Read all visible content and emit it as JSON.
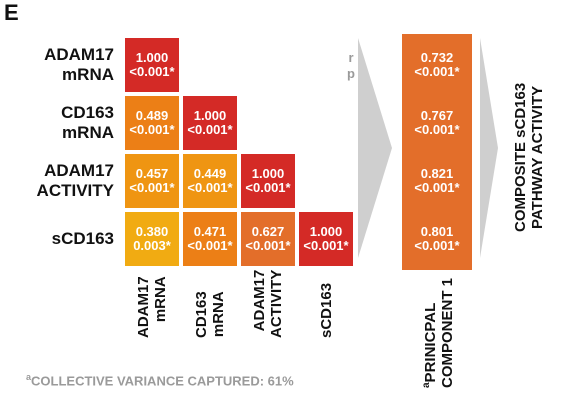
{
  "panel_letter": "E",
  "legend_key": {
    "r": "r",
    "p": "p"
  },
  "footnote": {
    "marker": "a",
    "text": "COLLECTIVE VARIANCE CAPTURED: 61%"
  },
  "colors": {
    "c1000": "#d42a26",
    "c05": "#e36e2a",
    "c06": "#ec7f16",
    "c04": "#ef9512",
    "c03": "#f1ab12",
    "arrow": "#cfcfcf"
  },
  "chart_data": {
    "type": "heatmap",
    "variables": [
      {
        "line1": "ADAM17",
        "line2": "mRNA"
      },
      {
        "line1": "CD163",
        "line2": "mRNA"
      },
      {
        "line1": "ADAM17",
        "line2": "ACTIVITY"
      },
      {
        "line1": "sCD163",
        "line2": ""
      }
    ],
    "correlation_matrix": [
      [
        {
          "r": "1.000",
          "p": "<0.001*"
        }
      ],
      [
        {
          "r": "0.489",
          "p": "<0.001*"
        },
        {
          "r": "1.000",
          "p": "<0.001*"
        }
      ],
      [
        {
          "r": "0.457",
          "p": "<0.001*"
        },
        {
          "r": "0.449",
          "p": "<0.001*"
        },
        {
          "r": "1.000",
          "p": "<0.001*"
        }
      ],
      [
        {
          "r": "0.380",
          "p": "0.003*"
        },
        {
          "r": "0.471",
          "p": "<0.001*"
        },
        {
          "r": "0.627",
          "p": "<0.001*"
        },
        {
          "r": "1.000",
          "p": "<0.001*"
        }
      ]
    ],
    "principal_component": {
      "label_marker": "a",
      "label_line1": "PRINICPAL",
      "label_line2": "COMPONENT 1",
      "loadings": [
        {
          "r": "0.732",
          "p": "<0.001*"
        },
        {
          "r": "0.767",
          "p": "<0.001*"
        },
        {
          "r": "0.821",
          "p": "<0.001*"
        },
        {
          "r": "0.801",
          "p": "<0.001*"
        }
      ]
    },
    "composite": {
      "line1": "COMPOSITE sCD163",
      "line2": "PATHWAY  ACTIVITY"
    }
  }
}
